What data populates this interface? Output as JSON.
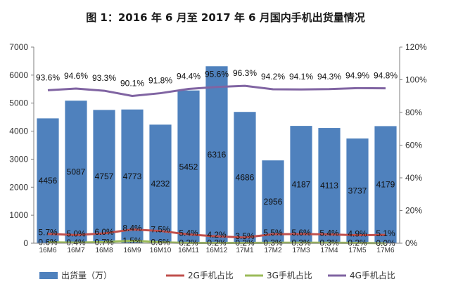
{
  "title": "图 1：2016 年 6 月至 2017 年 6 月国内手机出货量情况",
  "colors": {
    "bar": "#4f81bd",
    "g2": "#c0504d",
    "g3": "#9bbb59",
    "g4": "#8064a2",
    "axis": "#7f7f7f"
  },
  "chart_data": {
    "type": "bar",
    "title": "图 1：2016 年 6 月至 2017 年 6 月国内手机出货量情况",
    "categories": [
      "16M6",
      "16M7",
      "16M8",
      "16M9",
      "16M10",
      "16M11",
      "16M12",
      "17M1",
      "17M2",
      "17M3",
      "17M4",
      "17M5",
      "17M6"
    ],
    "left_axis": {
      "ticks": [
        "0",
        "1000",
        "2000",
        "3000",
        "4000",
        "5000",
        "6000",
        "7000"
      ],
      "min": 0,
      "max": 7000
    },
    "right_axis": {
      "ticks": [
        "0%",
        "20%",
        "40%",
        "60%",
        "80%",
        "100%",
        "120%"
      ],
      "min": 0,
      "max": 120
    },
    "series": [
      {
        "name": "出货量（万）",
        "kind": "bar",
        "axis": "left",
        "values": [
          4456,
          5087,
          4757,
          4773,
          4232,
          5452,
          6316,
          4686,
          2956,
          4187,
          4113,
          3737,
          4179
        ],
        "labels": [
          "4456",
          "5087",
          "4757",
          "4773",
          "4232",
          "5452",
          "6316",
          "4686",
          "2956",
          "4187",
          "4113",
          "3737",
          "4179"
        ]
      },
      {
        "name": "2G手机占比",
        "kind": "line",
        "axis": "right",
        "values": [
          5.7,
          5.0,
          6.0,
          8.4,
          7.5,
          5.4,
          4.2,
          3.5,
          5.5,
          5.6,
          5.4,
          4.9,
          5.1
        ],
        "labels": [
          "5.7%",
          "5.0%",
          "6.0%",
          "8.4%",
          "7.5%",
          "5.4%",
          "4.2%",
          "3.5%",
          "5.5%",
          "5.6%",
          "5.4%",
          "4.9%",
          "5.1%"
        ]
      },
      {
        "name": "3G手机占比",
        "kind": "line",
        "axis": "right",
        "values": [
          0.6,
          0.4,
          0.7,
          1.5,
          0.6,
          0.2,
          0.2,
          0.2,
          0.3,
          0.3,
          0.3,
          0.2,
          0.0
        ],
        "labels": [
          "0.6%",
          "0.4%",
          "0.7%",
          "1.5%",
          "0.6%",
          "0.2%",
          "0.2%",
          "0.2%",
          "0.3%",
          "0.3%",
          "0.3%",
          "0.2%",
          "0.0%"
        ]
      },
      {
        "name": "4G手机占比",
        "kind": "line",
        "axis": "right",
        "values": [
          93.6,
          94.6,
          93.3,
          90.1,
          91.8,
          94.4,
          95.6,
          96.3,
          94.2,
          94.1,
          94.3,
          94.9,
          94.8
        ],
        "labels": [
          "93.6%",
          "94.6%",
          "93.3%",
          "90.1%",
          "91.8%",
          "94.4%",
          "95.6%",
          "96.3%",
          "94.2%",
          "94.1%",
          "94.3%",
          "94.9%",
          "94.8%"
        ]
      }
    ],
    "legend": {
      "placement": "bottom"
    }
  }
}
